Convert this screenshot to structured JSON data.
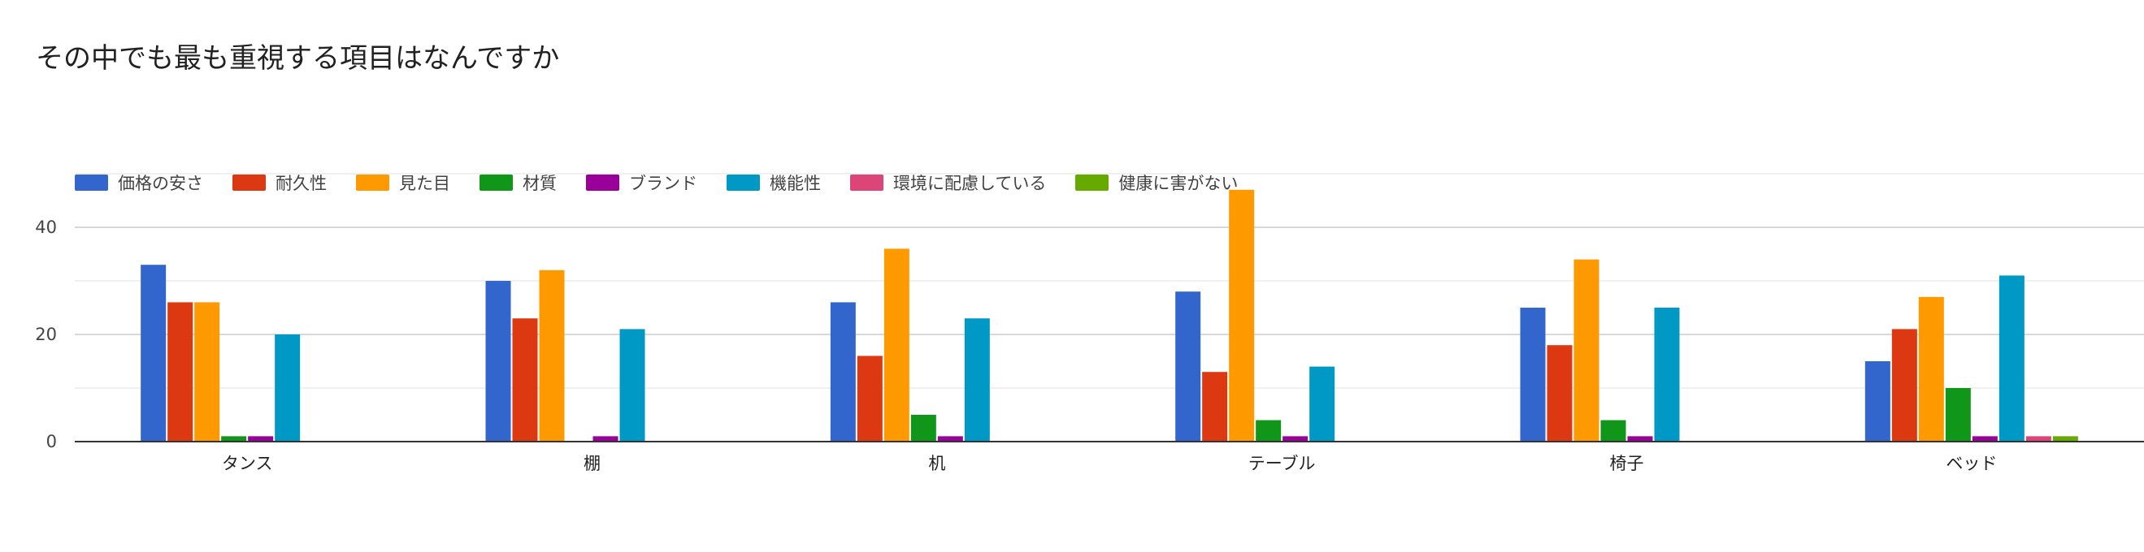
{
  "chart_data": {
    "type": "bar",
    "title": "その中でも最も重視する項目はなんですか",
    "categories": [
      "タンス",
      "棚",
      "机",
      "テーブル",
      "椅子",
      "ベッド"
    ],
    "series": [
      {
        "name": "価格の安さ",
        "color": "#3366cc",
        "values": [
          33,
          30,
          26,
          28,
          25,
          15
        ]
      },
      {
        "name": "耐久性",
        "color": "#dc3912",
        "values": [
          26,
          23,
          16,
          13,
          18,
          21
        ]
      },
      {
        "name": "見た目",
        "color": "#ff9900",
        "values": [
          26,
          32,
          36,
          47,
          34,
          27
        ]
      },
      {
        "name": "材質",
        "color": "#109618",
        "values": [
          1,
          0,
          5,
          4,
          4,
          10
        ]
      },
      {
        "name": "ブランド",
        "color": "#990099",
        "values": [
          1,
          1,
          1,
          1,
          1,
          1
        ]
      },
      {
        "name": "機能性",
        "color": "#0099c6",
        "values": [
          20,
          21,
          23,
          14,
          25,
          31
        ]
      },
      {
        "name": "環境に配慮している",
        "color": "#dd4477",
        "values": [
          0,
          0,
          0,
          0,
          0,
          1
        ]
      },
      {
        "name": "健康に害がない",
        "color": "#66aa00",
        "values": [
          0,
          0,
          0,
          0,
          0,
          1
        ]
      }
    ],
    "xlabel": "",
    "ylabel": "",
    "ylim": [
      0,
      50
    ],
    "yticks": [
      0,
      20,
      40
    ],
    "grid": true,
    "legend_position": "top-left"
  }
}
